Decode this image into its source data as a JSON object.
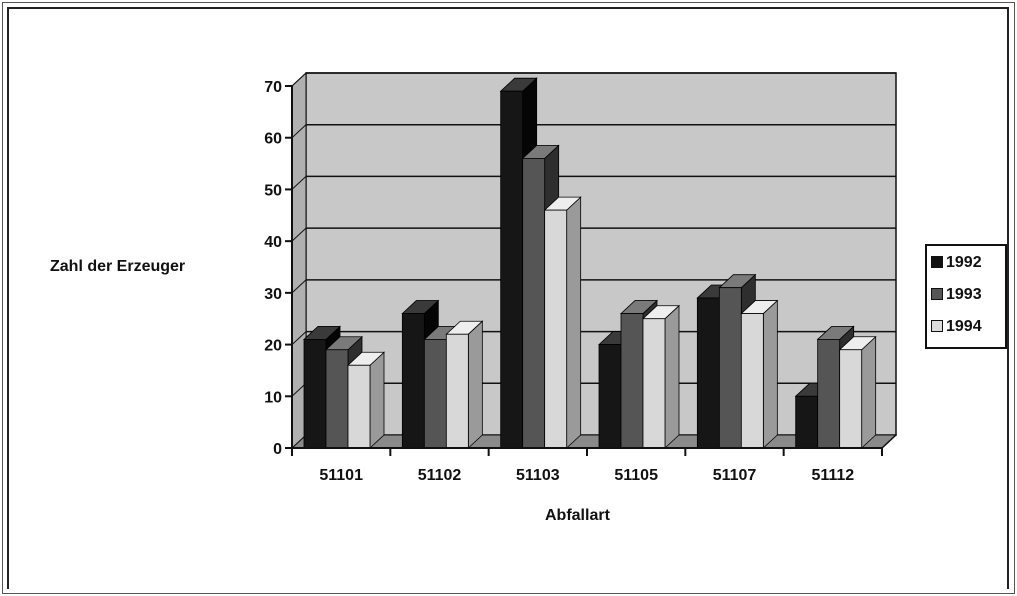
{
  "chart_data": {
    "type": "bar",
    "categories": [
      "51101",
      "51102",
      "51103",
      "51105",
      "51107",
      "51112"
    ],
    "series": [
      {
        "name": "1992",
        "values": [
          21,
          26,
          69,
          20,
          29,
          10
        ]
      },
      {
        "name": "1993",
        "values": [
          19,
          21,
          56,
          26,
          31,
          21
        ]
      },
      {
        "name": "1994",
        "values": [
          16,
          22,
          46,
          25,
          26,
          19
        ]
      }
    ],
    "xlabel": "Abfallart",
    "ylabel": "Zahl der Erzeuger",
    "ylim": [
      0,
      70
    ],
    "yticks": [
      "0",
      "10",
      "20",
      "30",
      "40",
      "50",
      "60",
      "70"
    ],
    "grid": true,
    "legend_position": "right",
    "colors": {
      "1992": {
        "front": "#161616",
        "side": "#050505",
        "top": "#3a3a3a"
      },
      "1993": {
        "front": "#555555",
        "side": "#2e2e2e",
        "top": "#7a7a7a"
      },
      "1994": {
        "front": "#d8d8d8",
        "side": "#9a9a9a",
        "top": "#eeeeee"
      },
      "wall": "#c8c8c8",
      "floor": "#8a8a8a"
    }
  }
}
